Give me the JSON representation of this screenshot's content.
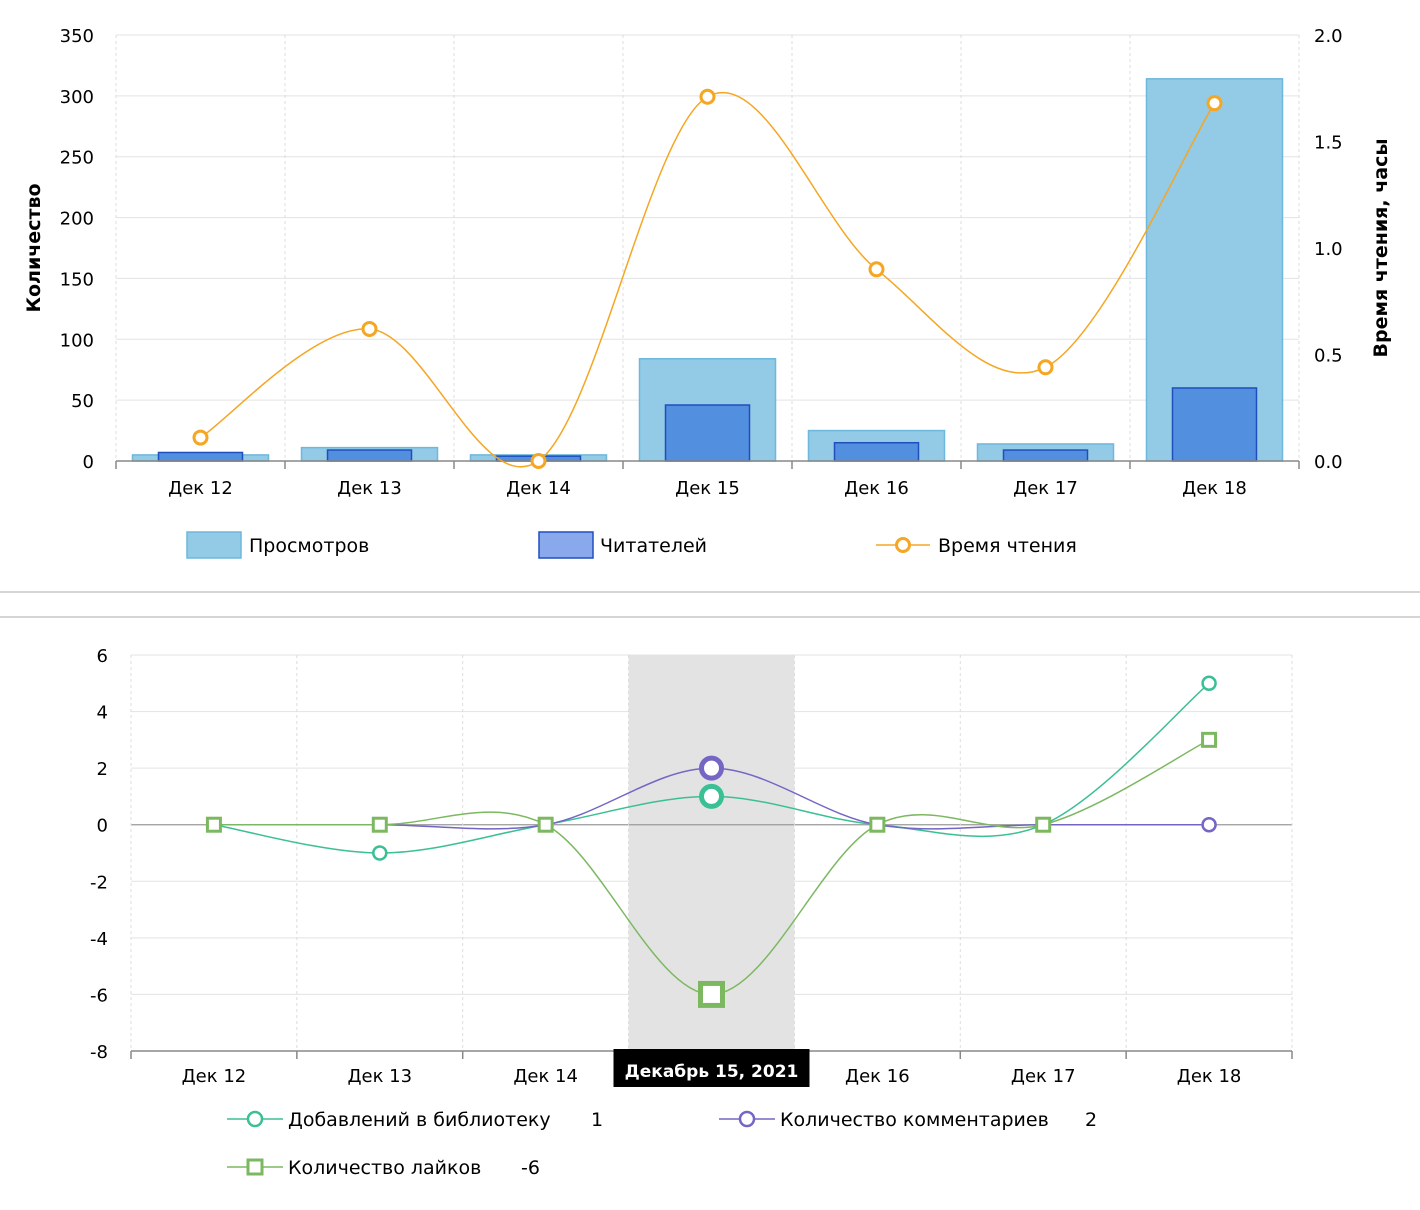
{
  "chart_data": [
    {
      "type": "bar",
      "categories": [
        "Дек 12",
        "Дек 13",
        "Дек 14",
        "Дек 15",
        "Дек 16",
        "Дек 17",
        "Дек 18"
      ],
      "series": [
        {
          "name": "Просмотров",
          "kind": "bar",
          "axis": "left",
          "values": [
            5,
            11,
            5,
            84,
            25,
            14,
            314
          ],
          "color": "#93cae6",
          "stroke": "#6db8dc"
        },
        {
          "name": "Читателей",
          "kind": "bar",
          "axis": "left",
          "values": [
            7,
            9,
            4,
            46,
            15,
            9,
            60
          ],
          "color": "#528fdf",
          "stroke": "#1f4fbf"
        },
        {
          "name": "Время чтения",
          "kind": "line",
          "axis": "right",
          "values": [
            0.11,
            0.62,
            0.0,
            1.71,
            0.9,
            0.44,
            1.68
          ],
          "color": "#f5a623"
        }
      ],
      "ylabel": "Количество",
      "ylabel_right": "Время чтения, часы",
      "ylim": [
        0,
        350
      ],
      "yticks": [
        "0",
        "50",
        "100",
        "150",
        "200",
        "250",
        "300",
        "350"
      ],
      "ylim_right": [
        0,
        2
      ],
      "yticks_right": [
        "0.0",
        "0.5",
        "1.0",
        "1.5",
        "2.0"
      ],
      "grid": true,
      "legend": "bottom"
    },
    {
      "type": "line",
      "categories": [
        "Дек 12",
        "Дек 13",
        "Дек 14",
        "Дек 15",
        "Дек 16",
        "Дек 17",
        "Дек 18"
      ],
      "series": [
        {
          "name": "Добавлений в библиотеку",
          "marker": "circle",
          "values": [
            0,
            -1,
            0,
            1,
            0,
            0,
            5
          ],
          "color": "#3bbf95",
          "current": "1"
        },
        {
          "name": "Количество комментариев",
          "marker": "circle",
          "values": [
            0,
            0,
            0,
            2,
            0,
            0,
            0
          ],
          "color": "#7466c4",
          "current": "2"
        },
        {
          "name": "Количество лайков",
          "marker": "square",
          "values": [
            0,
            0,
            0,
            -6,
            0,
            0,
            3
          ],
          "color": "#7cb860",
          "current": "-6"
        }
      ],
      "ylim": [
        -8,
        6
      ],
      "yticks": [
        "-8",
        "-6",
        "-4",
        "-2",
        "0",
        "2",
        "4",
        "6"
      ],
      "highlighted_index": 3,
      "tooltip": "Декабрь 15, 2021",
      "grid": true,
      "legend": "bottom"
    }
  ]
}
